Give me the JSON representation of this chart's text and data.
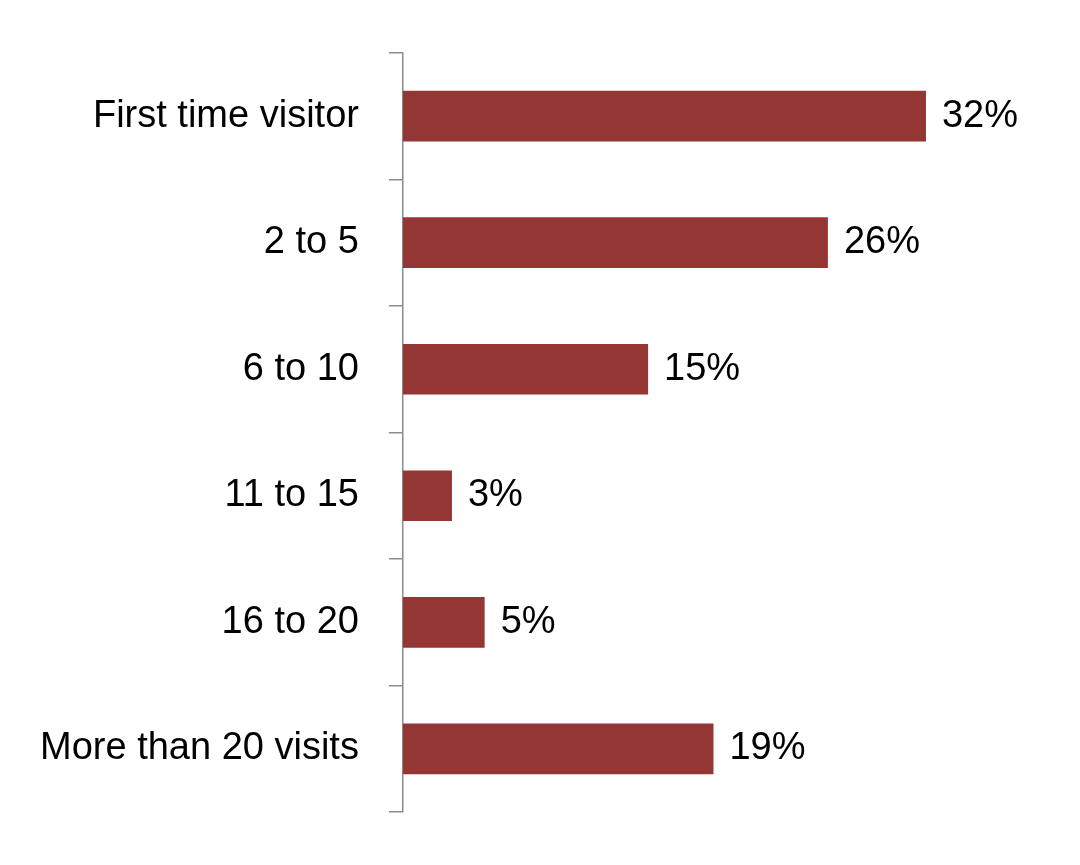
{
  "chart_data": {
    "type": "bar",
    "orientation": "horizontal",
    "categories": [
      "First time visitor",
      "2 to 5",
      "6 to 10",
      "11 to 15",
      "16 to 20",
      "More than 20 visits"
    ],
    "values": [
      32,
      26,
      15,
      3,
      5,
      19
    ],
    "value_labels": [
      "32%",
      "26%",
      "15%",
      "3%",
      "5%",
      "19%"
    ],
    "color": "#943634",
    "legend": false
  }
}
